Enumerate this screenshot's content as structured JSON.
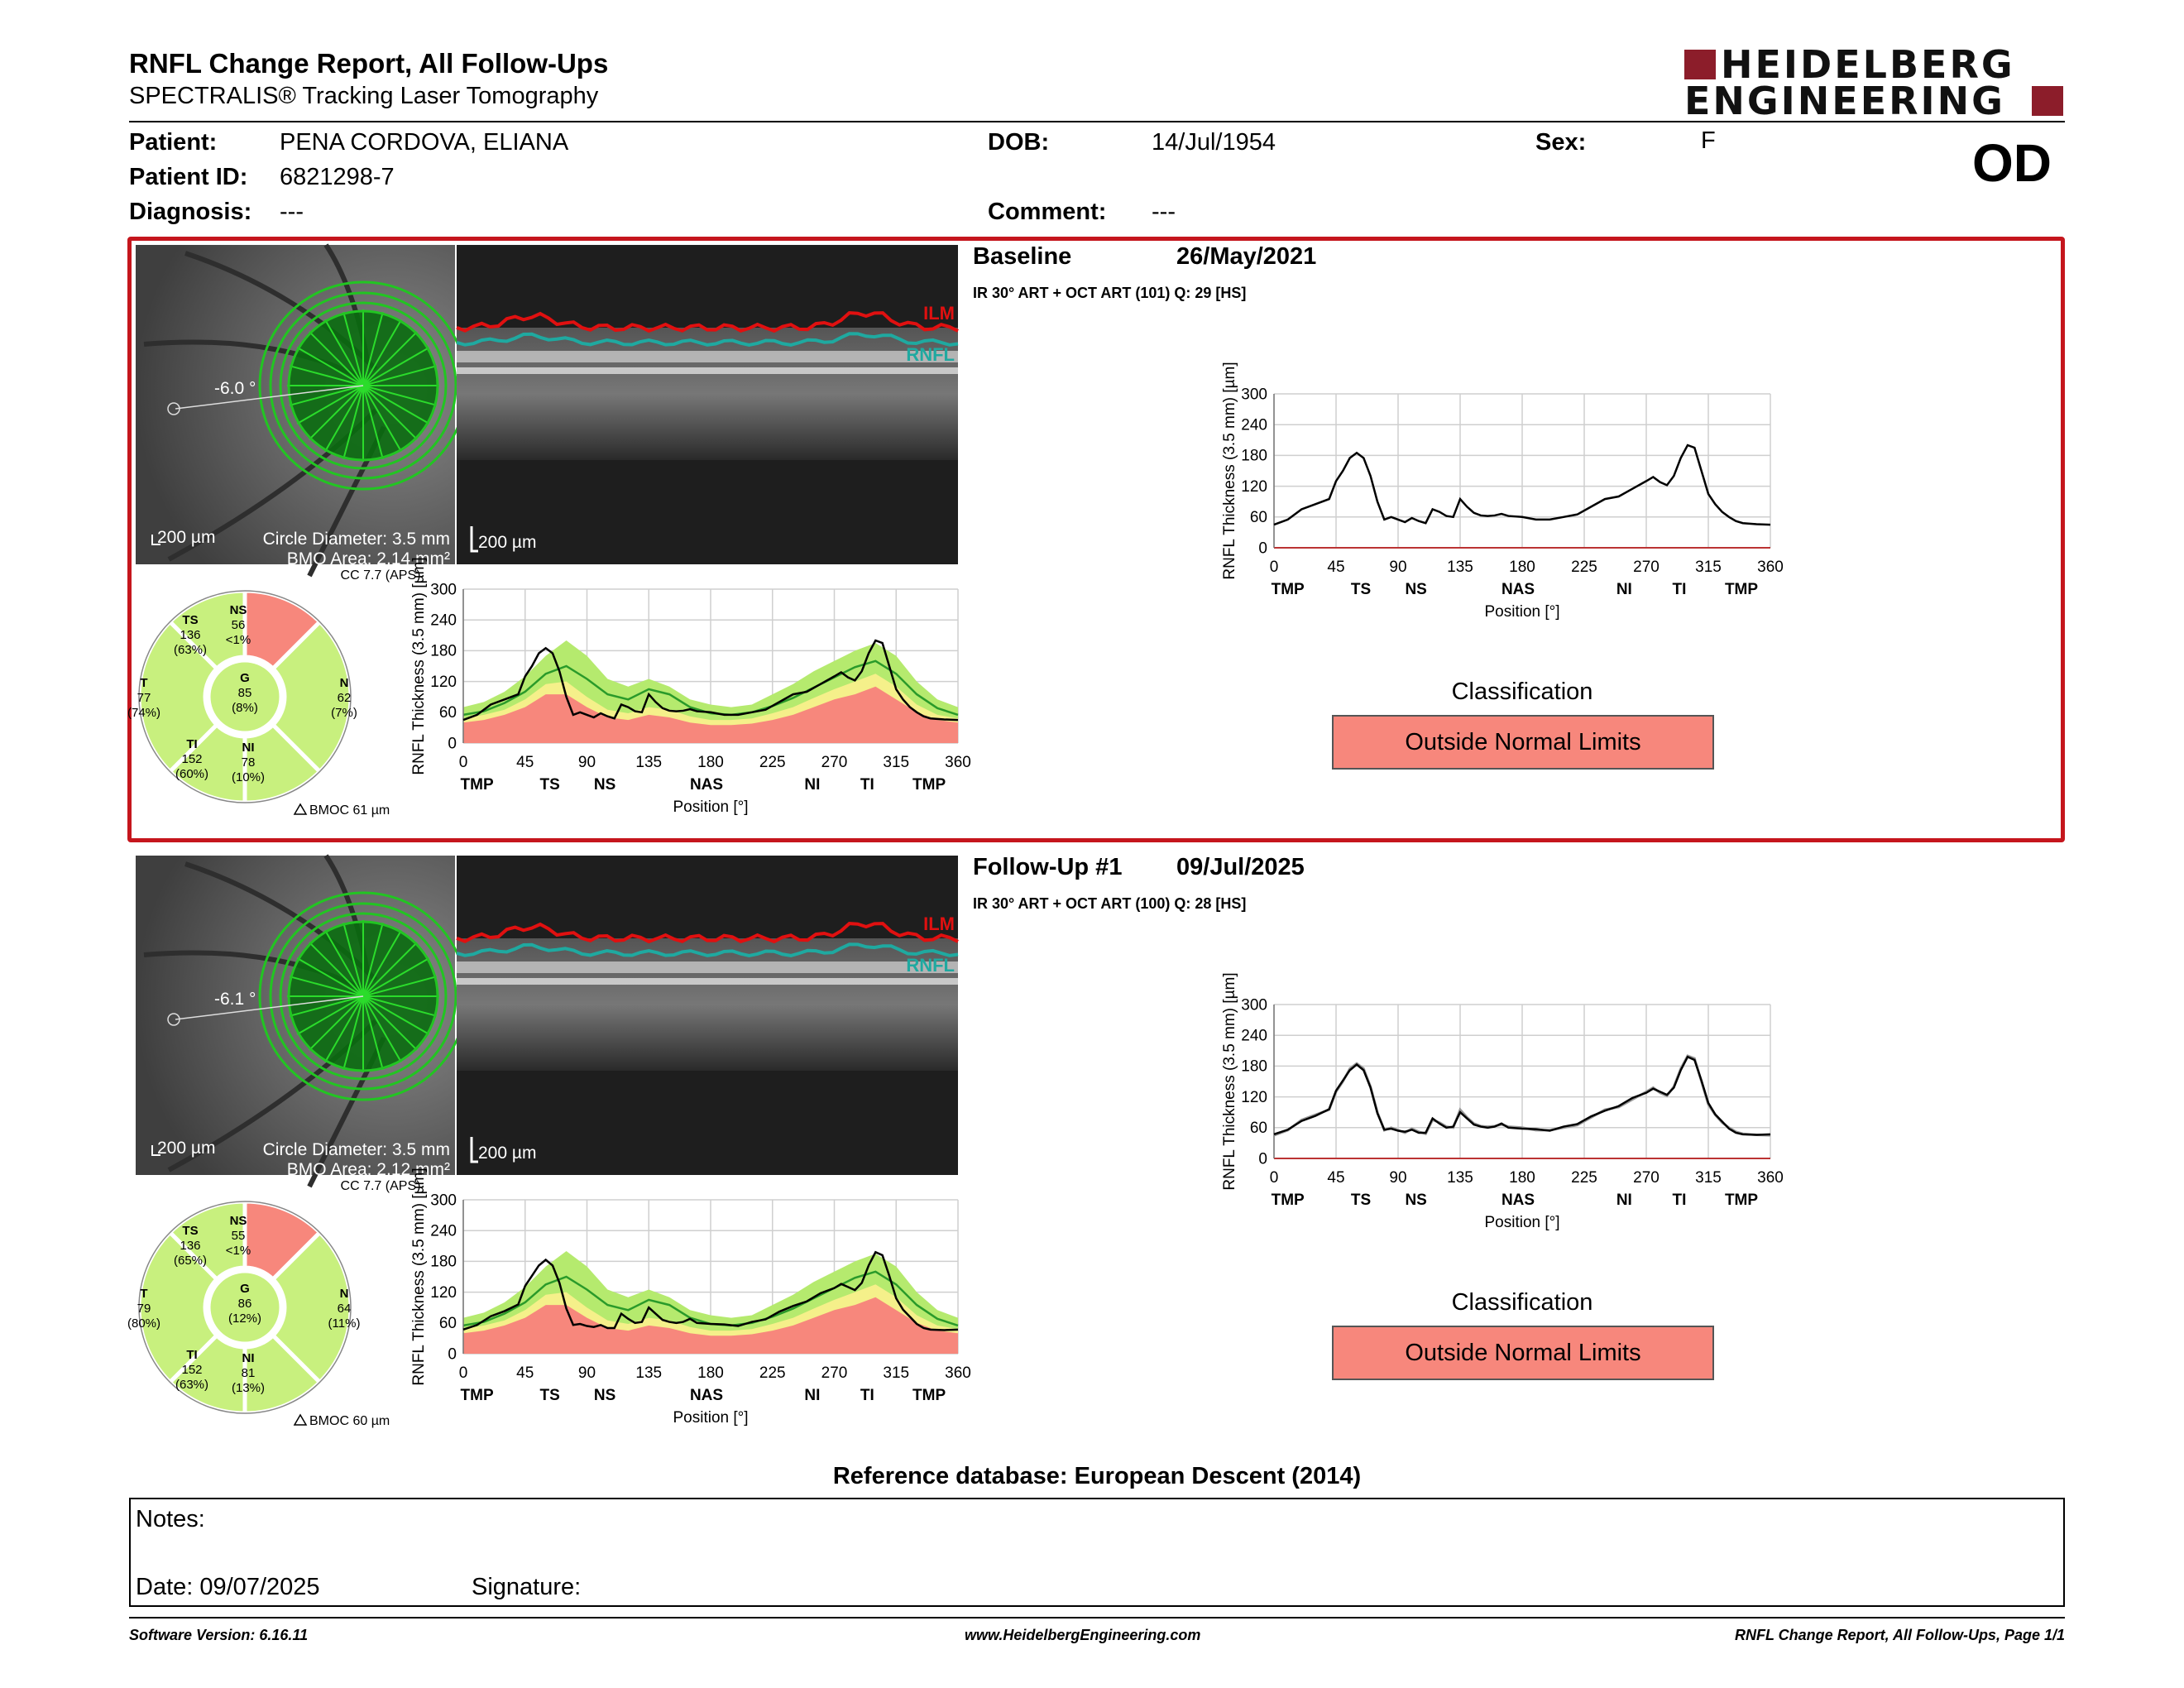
{
  "header": {
    "title": "RNFL Change Report, All Follow-Ups",
    "subtitle": "SPECTRALIS® Tracking Laser Tomography",
    "logo_line1": "HEIDELBERG",
    "logo_line2": "ENGINEERING",
    "eye": "OD"
  },
  "patient": {
    "patient_label": "Patient:",
    "patient_value": "PENA CORDOVA, ELIANA",
    "id_label": "Patient ID:",
    "id_value": "6821298-7",
    "diagnosis_label": "Diagnosis:",
    "diagnosis_value": "---",
    "dob_label": "DOB:",
    "dob_value": "14/Jul/1954",
    "comment_label": "Comment:",
    "comment_value": "---",
    "sex_label": "Sex:",
    "sex_value": "F"
  },
  "colors": {
    "frame_red": "#c5161d",
    "abnormal": "#f7877c",
    "normal": "#c8f07e",
    "borderline": "#f5f08a",
    "band_green": "#b5ea6e",
    "line_green": "#2a9a2a"
  },
  "exams": [
    {
      "title": "Baseline",
      "date": "26/May/2021",
      "scan_info": "IR 30° ART + OCT ART (101) Q: 29 [HS]",
      "angle": "-6.0 °",
      "scale_left": "200 µm",
      "scale_right": "200 µm",
      "circle_diameter": "Circle Diameter: 3.5 mm",
      "bmo_area": "BMO Area: 2.14 mm²",
      "ilm_label": "ILM",
      "rnfl_label": "RNFL",
      "cc": "CC 7.7 (APS)",
      "bmoc": "BMOC 61 µm",
      "sectors": {
        "TS": {
          "name": "TS",
          "value": "136",
          "pct": "(63%)"
        },
        "NS": {
          "name": "NS",
          "value": "56",
          "pct": "<1%"
        },
        "T": {
          "name": "T",
          "value": "77",
          "pct": "(74%)"
        },
        "G": {
          "name": "G",
          "value": "85",
          "pct": "(8%)"
        },
        "N": {
          "name": "N",
          "value": "62",
          "pct": "(7%)"
        },
        "TI": {
          "name": "TI",
          "value": "152",
          "pct": "(60%)"
        },
        "NI": {
          "name": "NI",
          "value": "78",
          "pct": "(10%)"
        }
      },
      "classification_label": "Classification",
      "classification": "Outside Normal Limits"
    },
    {
      "title": "Follow-Up #1",
      "date": "09/Jul/2025",
      "scan_info": "IR 30° ART + OCT ART (100) Q: 28 [HS]",
      "angle": "-6.1 °",
      "scale_left": "200 µm",
      "scale_right": "200 µm",
      "circle_diameter": "Circle Diameter: 3.5 mm",
      "bmo_area": "BMO Area: 2.12 mm²",
      "ilm_label": "ILM",
      "rnfl_label": "RNFL",
      "cc": "CC 7.7 (APS)",
      "bmoc": "BMOC 60 µm",
      "sectors": {
        "TS": {
          "name": "TS",
          "value": "136",
          "pct": "(65%)"
        },
        "NS": {
          "name": "NS",
          "value": "55",
          "pct": "<1%"
        },
        "T": {
          "name": "T",
          "value": "79",
          "pct": "(80%)"
        },
        "G": {
          "name": "G",
          "value": "86",
          "pct": "(12%)"
        },
        "N": {
          "name": "N",
          "value": "64",
          "pct": "(11%)"
        },
        "TI": {
          "name": "TI",
          "value": "152",
          "pct": "(63%)"
        },
        "NI": {
          "name": "NI",
          "value": "81",
          "pct": "(13%)"
        }
      },
      "classification_label": "Classification",
      "classification": "Outside Normal Limits"
    }
  ],
  "chart_data": [
    {
      "type": "line",
      "ylabel": "RNFL Thickness (3.5 mm) [µm]",
      "xlabel": "Position [°]",
      "x_ticks": [
        0,
        45,
        90,
        135,
        180,
        225,
        270,
        315,
        360
      ],
      "y_ticks": [
        0,
        60,
        120,
        180,
        240,
        300
      ],
      "sector_labels": [
        "TMP",
        "TS",
        "NS",
        "NAS",
        "NI",
        "TI",
        "TMP"
      ],
      "sector_positions": [
        10,
        63,
        103,
        177,
        254,
        294,
        339
      ],
      "xlim": [
        0,
        360
      ],
      "ylim": [
        0,
        300
      ],
      "series": [
        {
          "name": "Baseline",
          "x": [
            0,
            10,
            20,
            30,
            40,
            45,
            50,
            55,
            60,
            65,
            70,
            75,
            80,
            85,
            90,
            95,
            100,
            105,
            110,
            115,
            120,
            125,
            130,
            135,
            140,
            145,
            150,
            155,
            160,
            165,
            170,
            180,
            190,
            200,
            210,
            220,
            230,
            240,
            250,
            260,
            270,
            275,
            280,
            285,
            290,
            295,
            300,
            305,
            310,
            315,
            320,
            325,
            330,
            335,
            340,
            350,
            360
          ],
          "y": [
            45,
            55,
            75,
            85,
            95,
            130,
            150,
            175,
            185,
            175,
            140,
            90,
            55,
            60,
            55,
            50,
            58,
            52,
            48,
            75,
            70,
            62,
            60,
            95,
            80,
            68,
            63,
            62,
            63,
            66,
            62,
            60,
            55,
            55,
            60,
            65,
            80,
            95,
            100,
            115,
            130,
            138,
            128,
            122,
            140,
            175,
            200,
            195,
            150,
            105,
            85,
            70,
            60,
            52,
            48,
            46,
            45
          ]
        }
      ]
    },
    {
      "type": "line",
      "ylabel": "RNFL Thickness (3.5 mm) [µm]",
      "xlabel": "Position [°]",
      "x_ticks": [
        0,
        45,
        90,
        135,
        180,
        225,
        270,
        315,
        360
      ],
      "y_ticks": [
        0,
        60,
        120,
        180,
        240,
        300
      ],
      "sector_labels": [
        "TMP",
        "TS",
        "NS",
        "NAS",
        "NI",
        "TI",
        "TMP"
      ],
      "sector_positions": [
        10,
        63,
        103,
        177,
        254,
        294,
        339
      ],
      "xlim": [
        0,
        360
      ],
      "ylim": [
        0,
        300
      ],
      "series": [
        {
          "name": "Baseline",
          "x": [
            0,
            10,
            20,
            30,
            40,
            45,
            50,
            55,
            60,
            65,
            70,
            75,
            80,
            85,
            90,
            95,
            100,
            105,
            110,
            115,
            120,
            125,
            130,
            135,
            140,
            145,
            150,
            155,
            160,
            165,
            170,
            180,
            190,
            200,
            210,
            220,
            230,
            240,
            250,
            260,
            270,
            275,
            280,
            285,
            290,
            295,
            300,
            305,
            310,
            315,
            320,
            325,
            330,
            335,
            340,
            350,
            360
          ],
          "y": [
            45,
            55,
            75,
            85,
            95,
            130,
            150,
            175,
            185,
            175,
            140,
            90,
            55,
            60,
            55,
            50,
            58,
            52,
            48,
            75,
            70,
            62,
            60,
            95,
            80,
            68,
            63,
            62,
            63,
            66,
            62,
            60,
            55,
            55,
            60,
            65,
            80,
            95,
            100,
            115,
            130,
            138,
            128,
            122,
            140,
            175,
            200,
            195,
            150,
            105,
            85,
            70,
            60,
            52,
            48,
            46,
            45
          ]
        },
        {
          "name": "Follow-Up #1",
          "x": [
            0,
            10,
            20,
            30,
            40,
            45,
            50,
            55,
            60,
            65,
            70,
            75,
            80,
            85,
            90,
            95,
            100,
            105,
            110,
            115,
            120,
            125,
            130,
            135,
            140,
            145,
            150,
            155,
            160,
            165,
            170,
            180,
            190,
            200,
            210,
            220,
            230,
            240,
            250,
            260,
            270,
            275,
            280,
            285,
            290,
            295,
            300,
            305,
            310,
            315,
            320,
            325,
            330,
            335,
            340,
            350,
            360
          ],
          "y": [
            47,
            56,
            73,
            83,
            96,
            132,
            152,
            172,
            183,
            172,
            138,
            88,
            56,
            58,
            54,
            52,
            56,
            50,
            50,
            78,
            68,
            60,
            62,
            90,
            78,
            66,
            62,
            60,
            62,
            68,
            60,
            58,
            57,
            54,
            62,
            67,
            82,
            93,
            102,
            118,
            128,
            136,
            130,
            124,
            138,
            172,
            198,
            192,
            152,
            108,
            86,
            72,
            58,
            50,
            47,
            46,
            47
          ]
        }
      ]
    },
    {
      "type": "area",
      "ylabel": "RNFL Thickness (3.5 mm) [µm]",
      "xlabel": "Position [°]",
      "x_ticks": [
        0,
        45,
        90,
        135,
        180,
        225,
        270,
        315,
        360
      ],
      "y_ticks": [
        0,
        60,
        120,
        180,
        240,
        300
      ],
      "sector_labels": [
        "TMP",
        "TS",
        "NS",
        "NAS",
        "NI",
        "TI",
        "TMP"
      ],
      "sector_positions": [
        10,
        63,
        103,
        177,
        254,
        294,
        339
      ],
      "xlim": [
        0,
        360
      ],
      "ylim": [
        0,
        300
      ],
      "x": [
        0,
        15,
        30,
        45,
        60,
        75,
        90,
        105,
        120,
        135,
        150,
        165,
        180,
        195,
        210,
        225,
        240,
        255,
        270,
        285,
        300,
        315,
        330,
        345,
        360
      ],
      "lower_red": [
        40,
        45,
        55,
        70,
        95,
        95,
        70,
        50,
        45,
        55,
        50,
        40,
        35,
        35,
        38,
        45,
        55,
        70,
        85,
        95,
        110,
        85,
        60,
        45,
        40
      ],
      "upper_yellow": [
        48,
        55,
        65,
        85,
        115,
        120,
        90,
        65,
        58,
        70,
        65,
        52,
        45,
        45,
        48,
        58,
        70,
        88,
        105,
        120,
        135,
        110,
        75,
        55,
        48
      ],
      "upper_green": [
        70,
        80,
        100,
        130,
        170,
        200,
        170,
        125,
        110,
        125,
        110,
        85,
        75,
        70,
        75,
        95,
        115,
        140,
        160,
        180,
        195,
        170,
        120,
        85,
        70
      ],
      "mean": [
        55,
        62,
        78,
        100,
        135,
        150,
        125,
        95,
        85,
        105,
        95,
        70,
        58,
        55,
        60,
        72,
        88,
        108,
        128,
        148,
        160,
        135,
        95,
        68,
        55
      ],
      "series": [
        {
          "name": "Baseline",
          "x": [
            0,
            10,
            20,
            30,
            40,
            45,
            50,
            55,
            60,
            65,
            70,
            75,
            80,
            85,
            90,
            95,
            100,
            105,
            110,
            115,
            120,
            125,
            130,
            135,
            140,
            145,
            150,
            155,
            160,
            165,
            170,
            180,
            190,
            200,
            210,
            220,
            230,
            240,
            250,
            260,
            270,
            275,
            280,
            285,
            290,
            295,
            300,
            305,
            310,
            315,
            320,
            325,
            330,
            335,
            340,
            350,
            360
          ],
          "y": [
            45,
            55,
            75,
            85,
            95,
            130,
            150,
            175,
            185,
            175,
            140,
            90,
            55,
            60,
            55,
            50,
            58,
            52,
            48,
            75,
            70,
            62,
            60,
            95,
            80,
            68,
            63,
            62,
            63,
            66,
            62,
            60,
            55,
            55,
            60,
            65,
            80,
            95,
            100,
            115,
            130,
            138,
            128,
            122,
            140,
            175,
            200,
            195,
            150,
            105,
            85,
            70,
            60,
            52,
            48,
            46,
            45
          ]
        }
      ]
    },
    {
      "type": "area",
      "ylabel": "RNFL Thickness (3.5 mm) [µm]",
      "xlabel": "Position [°]",
      "x_ticks": [
        0,
        45,
        90,
        135,
        180,
        225,
        270,
        315,
        360
      ],
      "y_ticks": [
        0,
        60,
        120,
        180,
        240,
        300
      ],
      "sector_labels": [
        "TMP",
        "TS",
        "NS",
        "NAS",
        "NI",
        "TI",
        "TMP"
      ],
      "sector_positions": [
        10,
        63,
        103,
        177,
        254,
        294,
        339
      ],
      "xlim": [
        0,
        360
      ],
      "ylim": [
        0,
        300
      ],
      "x": [
        0,
        15,
        30,
        45,
        60,
        75,
        90,
        105,
        120,
        135,
        150,
        165,
        180,
        195,
        210,
        225,
        240,
        255,
        270,
        285,
        300,
        315,
        330,
        345,
        360
      ],
      "lower_red": [
        40,
        45,
        55,
        70,
        95,
        95,
        70,
        50,
        45,
        55,
        50,
        40,
        35,
        35,
        38,
        45,
        55,
        70,
        85,
        95,
        110,
        85,
        60,
        45,
        40
      ],
      "upper_yellow": [
        48,
        55,
        65,
        85,
        115,
        120,
        90,
        65,
        58,
        70,
        65,
        52,
        45,
        45,
        48,
        58,
        70,
        88,
        105,
        120,
        135,
        110,
        75,
        55,
        48
      ],
      "upper_green": [
        70,
        80,
        100,
        130,
        170,
        200,
        170,
        125,
        110,
        125,
        110,
        85,
        75,
        70,
        75,
        95,
        115,
        140,
        160,
        180,
        195,
        170,
        120,
        85,
        70
      ],
      "mean": [
        55,
        62,
        78,
        100,
        135,
        150,
        125,
        95,
        85,
        105,
        95,
        70,
        58,
        55,
        60,
        72,
        88,
        108,
        128,
        148,
        160,
        135,
        95,
        68,
        55
      ],
      "series": [
        {
          "name": "Follow-Up #1",
          "x": [
            0,
            10,
            20,
            30,
            40,
            45,
            50,
            55,
            60,
            65,
            70,
            75,
            80,
            85,
            90,
            95,
            100,
            105,
            110,
            115,
            120,
            125,
            130,
            135,
            140,
            145,
            150,
            155,
            160,
            165,
            170,
            180,
            190,
            200,
            210,
            220,
            230,
            240,
            250,
            260,
            270,
            275,
            280,
            285,
            290,
            295,
            300,
            305,
            310,
            315,
            320,
            325,
            330,
            335,
            340,
            350,
            360
          ],
          "y": [
            47,
            56,
            73,
            83,
            96,
            132,
            152,
            172,
            183,
            172,
            138,
            88,
            56,
            58,
            54,
            52,
            56,
            50,
            50,
            78,
            68,
            60,
            62,
            90,
            78,
            66,
            62,
            60,
            62,
            68,
            60,
            58,
            57,
            54,
            62,
            67,
            82,
            93,
            102,
            118,
            128,
            136,
            130,
            124,
            138,
            172,
            198,
            192,
            152,
            108,
            86,
            72,
            58,
            50,
            47,
            46,
            47
          ]
        }
      ]
    }
  ],
  "reference_db": "Reference database: European Descent (2014)",
  "notes": {
    "notes_label": "Notes:",
    "date_label": "Date: 09/07/2025",
    "signature_label": "Signature:"
  },
  "footer": {
    "software": "Software Version: 6.16.11",
    "website": "www.HeidelbergEngineering.com",
    "page": "RNFL Change Report, All Follow-Ups, Page 1/1"
  }
}
